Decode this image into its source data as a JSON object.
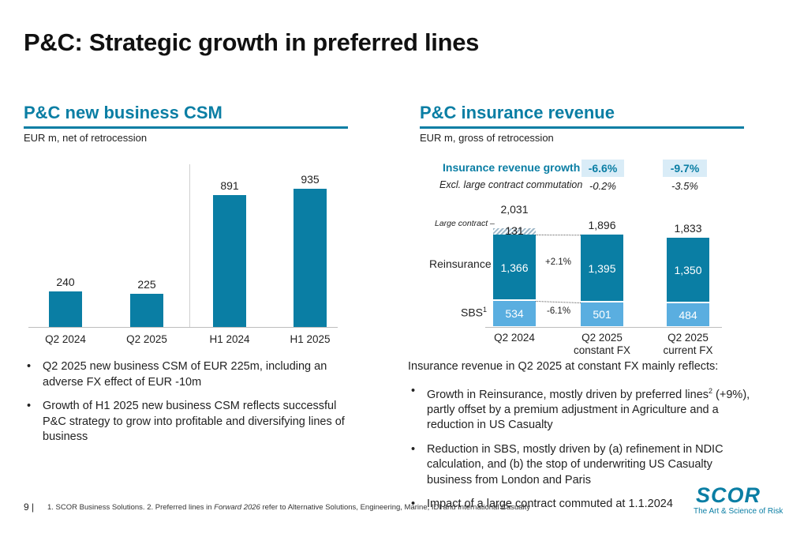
{
  "page": {
    "title": "P&C: Strategic growth in preferred lines",
    "page_number": "9",
    "footnote_a": "1. SCOR Business Solutions. 2. Preferred lines in ",
    "footnote_italic": "Forward 2026",
    "footnote_b": " refer to Alternative Solutions, Engineering, Marine, IDI and International Casualty",
    "logo_text": "SCOR",
    "logo_tagline": "The Art & Science of Risk"
  },
  "left": {
    "heading": "P&C new business CSM",
    "subheading": "EUR m, net of retrocession",
    "bullets": [
      "Q2 2025 new business CSM of EUR 225m, including an adverse FX effect of EUR -10m",
      "Growth of H1 2025 new business CSM reflects successful P&C strategy to grow into profitable and diversifying lines of business"
    ]
  },
  "right": {
    "heading": "P&C insurance revenue",
    "subheading": "EUR m, gross of retrocession",
    "growth_label": "Insurance revenue growth",
    "excl_label": "Excl. large contract commutation",
    "growth_values": [
      "-6.6%",
      "-9.7%"
    ],
    "excl_values": [
      "-0.2%",
      "-3.5%"
    ],
    "intro": "Insurance revenue in Q2 2025 at constant FX mainly reflects:",
    "bullets_pre_sup": "Growth in Reinsurance, mostly driven by preferred lines",
    "bullets_sup": "2",
    "bullets_post_sup": " (+9%), partly offset by a premium adjustment in Agriculture and a reduction in US Casualty",
    "bullets": [
      "Reduction in SBS, mostly driven by (a) refinement in NDIC calculation, and (b) the stop of underwriting US Casualty business from London and Paris",
      "Impact of a large contract commuted at 1.1.2024"
    ]
  },
  "chart_data": [
    {
      "type": "bar",
      "title": "P&C new business CSM",
      "categories": [
        "Q2 2024",
        "Q2 2025",
        "H1 2024",
        "H1 2025"
      ],
      "values": [
        240,
        225,
        891,
        935
      ],
      "ylim": [
        0,
        1100
      ]
    },
    {
      "type": "bar",
      "stacked": true,
      "title": "P&C insurance revenue",
      "categories": [
        "Q2 2024",
        "Q2 2025 constant FX",
        "Q2 2025 current FX"
      ],
      "category_lines": [
        [
          "Q2 2024"
        ],
        [
          "Q2 2025",
          "constant FX"
        ],
        [
          "Q2 2025",
          "current FX"
        ]
      ],
      "series": [
        {
          "name": "SBS",
          "values": [
            534,
            501,
            484
          ],
          "color": "#5aaee0"
        },
        {
          "name": "Reinsurance",
          "values": [
            1366,
            1395,
            1350
          ],
          "color": "#0a7ea4"
        },
        {
          "name": "Large contract",
          "values": [
            131,
            0,
            0
          ],
          "color": "#0a7ea4"
        }
      ],
      "totals": [
        "2,031",
        "1,896",
        "1,833"
      ],
      "segment_labels": {
        "SBS": [
          "534",
          "501",
          "484"
        ],
        "Reinsurance": [
          "1,366",
          "1,395",
          "1,350"
        ],
        "Large contract": [
          "131"
        ]
      },
      "series_labels": {
        "sbs": "SBS",
        "sbs_sup": "1",
        "reinsurance": "Reinsurance",
        "large_contract": "Large contract"
      },
      "change_labels": {
        "reinsurance": "+2.1%",
        "sbs": "-6.1%"
      }
    }
  ]
}
